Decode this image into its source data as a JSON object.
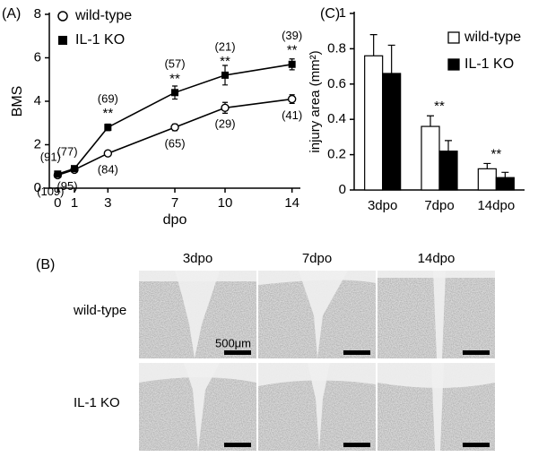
{
  "chart_data": [
    {
      "type": "line",
      "panel_label": "(A)",
      "y_label": "BMS",
      "x_label": "dpo",
      "x": [
        0,
        1,
        3,
        7,
        10,
        14
      ],
      "xlim": [
        -0.5,
        14.5
      ],
      "xticks": [
        0,
        1,
        3,
        7,
        10,
        14
      ],
      "ylim": [
        0,
        8
      ],
      "yticks": [
        0,
        2,
        4,
        6,
        8
      ],
      "legend": "upper left",
      "series": [
        {
          "name": "wild-type",
          "color": "#000000",
          "marker": "open-circle",
          "values": [
            0.6,
            0.85,
            1.6,
            2.8,
            3.7,
            4.1
          ],
          "errors": [
            0.1,
            0.1,
            0.1,
            0.15,
            0.25,
            0.2
          ],
          "n_labels": [
            "(109)",
            "(95)",
            "(84)",
            "(65)",
            "(29)",
            "(41)"
          ]
        },
        {
          "name": "IL-1 KO",
          "color": "#000000",
          "marker": "filled-square",
          "values": [
            0.65,
            0.9,
            2.8,
            4.4,
            5.2,
            5.7
          ],
          "errors": [
            0.1,
            0.1,
            0.15,
            0.3,
            0.45,
            0.25
          ],
          "n_labels": [
            "(91)",
            "(77)",
            "(69)",
            "(57)",
            "(21)",
            "(39)"
          ]
        }
      ],
      "annotations": [
        {
          "text": "**",
          "x": 3
        },
        {
          "text": "**",
          "x": 7
        },
        {
          "text": "**",
          "x": 10
        },
        {
          "text": "**",
          "x": 14
        }
      ]
    },
    {
      "type": "bar",
      "panel_label": "(C)",
      "y_label": "injury area (mm²)",
      "categories": [
        "3dpo",
        "7dpo",
        "14dpo"
      ],
      "ylim": [
        0,
        1
      ],
      "yticks": [
        0,
        0.2,
        0.4,
        0.6,
        0.8,
        1
      ],
      "legend": "upper right",
      "series": [
        {
          "name": "wild-type",
          "color": "#ffffff",
          "values": [
            0.76,
            0.36,
            0.12
          ],
          "errors": [
            0.12,
            0.06,
            0.03
          ]
        },
        {
          "name": "IL-1 KO",
          "color": "#000000",
          "values": [
            0.66,
            0.22,
            0.07
          ],
          "errors": [
            0.16,
            0.06,
            0.03
          ]
        }
      ],
      "annotations": [
        {
          "text": "**",
          "x": "7dpo"
        },
        {
          "text": "**",
          "x": "14dpo"
        }
      ]
    }
  ],
  "panel_b": {
    "panel_label": "(B)",
    "columns": [
      "3dpo",
      "7dpo",
      "14dpo"
    ],
    "rows": [
      "wild-type",
      "IL-1 KO"
    ],
    "scale_bar": "500μm"
  }
}
